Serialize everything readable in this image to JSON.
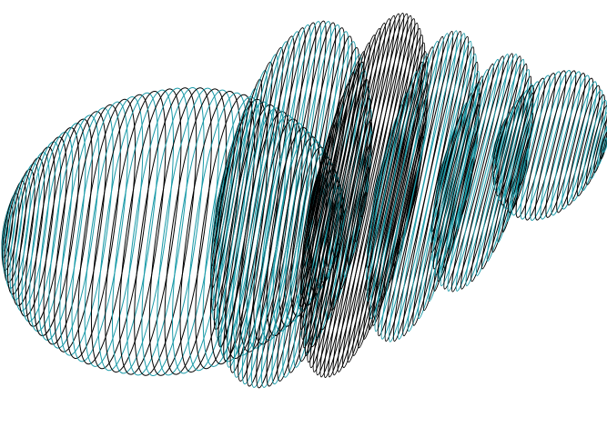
{
  "figure": {
    "description_icon": "wireframe-3d-lobed-surface",
    "colors": {
      "background": "#ffffff",
      "line_dark": "#000000",
      "line_accent": "#1a9aa8"
    }
  }
}
